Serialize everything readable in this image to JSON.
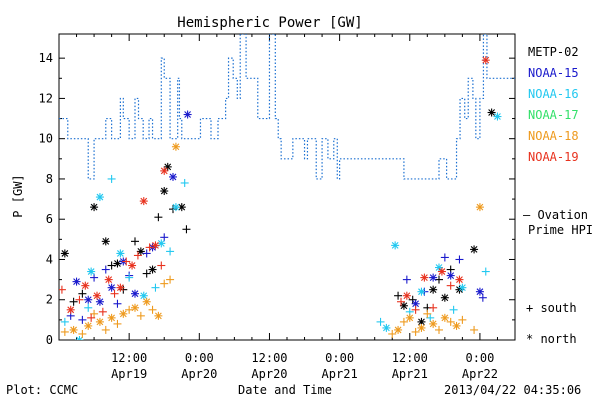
{
  "chart_data": {
    "type": "scatter",
    "title": "Hemispheric Power [GW]",
    "xlabel": "Date and Time",
    "ylabel": "P [GW]",
    "ylim": [
      0,
      15.2
    ],
    "xlim": [
      0,
      78
    ],
    "yticks": [
      0,
      2,
      4,
      6,
      8,
      10,
      12,
      14
    ],
    "xticks": [
      {
        "x": 12,
        "time": "12:00",
        "date": "Apr19"
      },
      {
        "x": 24,
        "time": "0:00",
        "date": "Apr20"
      },
      {
        "x": 36,
        "time": "12:00",
        "date": "Apr20"
      },
      {
        "x": 48,
        "time": "0:00",
        "date": "Apr21"
      },
      {
        "x": 60,
        "time": "12:00",
        "date": "Apr21"
      },
      {
        "x": 72,
        "time": "0:00",
        "date": "Apr22"
      }
    ],
    "x_units_note": "hours since Apr19 00:00",
    "legend_position": "right",
    "grid": false,
    "marker_legend": {
      "south": "+ south",
      "north": "* north"
    },
    "series": [
      {
        "name": "METP-02",
        "color": "#000000"
      },
      {
        "name": "NOAA-15",
        "color": "#1a1acc"
      },
      {
        "name": "NOAA-16",
        "color": "#22c8f0"
      },
      {
        "name": "NOAA-17",
        "color": "#33e06a"
      },
      {
        "name": "NOAA-18",
        "color": "#ee9a1e"
      },
      {
        "name": "NOAA-19",
        "color": "#e8321e"
      }
    ],
    "ovation": {
      "name": "— Ovation Prime HPI",
      "label_line1": "— Ovation",
      "label_line2": "Prime HPI",
      "color": "#1a6fd1",
      "steps": [
        [
          0,
          11
        ],
        [
          1.5,
          10
        ],
        [
          5,
          8
        ],
        [
          6,
          10
        ],
        [
          8,
          11
        ],
        [
          9,
          10
        ],
        [
          10.5,
          12
        ],
        [
          11,
          11
        ],
        [
          12,
          10
        ],
        [
          13,
          12
        ],
        [
          13.6,
          11
        ],
        [
          14.4,
          10
        ],
        [
          15.4,
          11
        ],
        [
          16,
          10
        ],
        [
          17.5,
          14
        ],
        [
          18,
          13
        ],
        [
          19,
          10
        ],
        [
          20.3,
          13
        ],
        [
          20.6,
          11
        ],
        [
          21,
          10
        ],
        [
          23,
          10
        ],
        [
          24.2,
          11
        ],
        [
          26,
          10
        ],
        [
          27.2,
          11
        ],
        [
          28,
          11
        ],
        [
          28.5,
          12
        ],
        [
          29,
          14
        ],
        [
          29.8,
          13
        ],
        [
          30.5,
          12
        ],
        [
          31,
          15.2
        ],
        [
          32,
          13
        ],
        [
          34,
          11
        ],
        [
          35,
          11
        ],
        [
          36,
          15.2
        ],
        [
          37,
          11
        ],
        [
          37.5,
          10
        ],
        [
          38,
          9
        ],
        [
          40,
          10
        ],
        [
          42,
          9
        ],
        [
          42.5,
          10
        ],
        [
          44,
          8
        ],
        [
          45,
          10
        ],
        [
          46,
          9
        ],
        [
          47,
          10
        ],
        [
          47.6,
          8
        ],
        [
          48,
          9
        ],
        [
          52,
          9
        ],
        [
          57,
          9
        ],
        [
          59,
          8
        ],
        [
          65,
          9
        ],
        [
          66.3,
          8
        ],
        [
          68,
          10
        ],
        [
          68.6,
          12
        ],
        [
          69.4,
          11
        ],
        [
          70,
          13
        ],
        [
          70.8,
          12
        ],
        [
          71.3,
          10
        ],
        [
          72,
          12
        ],
        [
          72.6,
          15.2
        ],
        [
          73.2,
          13
        ]
      ]
    },
    "points": [
      {
        "s": "METP-02",
        "m": "n",
        "x": 1.0,
        "y": 4.3
      },
      {
        "s": "METP-02",
        "m": "s",
        "x": 2.5,
        "y": 1.9
      },
      {
        "s": "METP-02",
        "m": "s",
        "x": 4,
        "y": 2.3
      },
      {
        "s": "METP-02",
        "m": "n",
        "x": 6,
        "y": 6.6
      },
      {
        "s": "METP-02",
        "m": "n",
        "x": 8,
        "y": 4.9
      },
      {
        "s": "METP-02",
        "m": "s",
        "x": 9,
        "y": 3.7
      },
      {
        "s": "METP-02",
        "m": "n",
        "x": 10,
        "y": 3.8
      },
      {
        "s": "METP-02",
        "m": "s",
        "x": 11,
        "y": 2.5
      },
      {
        "s": "METP-02",
        "m": "s",
        "x": 13,
        "y": 4.9
      },
      {
        "s": "METP-02",
        "m": "n",
        "x": 14,
        "y": 4.4
      },
      {
        "s": "METP-02",
        "m": "s",
        "x": 15,
        "y": 3.3
      },
      {
        "s": "METP-02",
        "m": "n",
        "x": 16,
        "y": 3.5
      },
      {
        "s": "METP-02",
        "m": "s",
        "x": 17,
        "y": 6.1
      },
      {
        "s": "METP-02",
        "m": "n",
        "x": 18,
        "y": 7.4
      },
      {
        "s": "METP-02",
        "m": "n",
        "x": 18.6,
        "y": 8.6
      },
      {
        "s": "METP-02",
        "m": "s",
        "x": 19.5,
        "y": 6.5
      },
      {
        "s": "METP-02",
        "m": "n",
        "x": 21,
        "y": 6.6
      },
      {
        "s": "METP-02",
        "m": "s",
        "x": 21.8,
        "y": 5.5
      },
      {
        "s": "METP-02",
        "m": "s",
        "x": 58,
        "y": 2.2
      },
      {
        "s": "METP-02",
        "m": "n",
        "x": 59,
        "y": 1.7
      },
      {
        "s": "METP-02",
        "m": "s",
        "x": 60.5,
        "y": 2.0
      },
      {
        "s": "METP-02",
        "m": "n",
        "x": 62,
        "y": 0.9
      },
      {
        "s": "METP-02",
        "m": "s",
        "x": 63,
        "y": 1.6
      },
      {
        "s": "METP-02",
        "m": "n",
        "x": 64,
        "y": 2.5
      },
      {
        "s": "METP-02",
        "m": "s",
        "x": 65,
        "y": 3.0
      },
      {
        "s": "METP-02",
        "m": "n",
        "x": 66,
        "y": 2.1
      },
      {
        "s": "METP-02",
        "m": "s",
        "x": 67,
        "y": 3.5
      },
      {
        "s": "METP-02",
        "m": "n",
        "x": 68.5,
        "y": 2.5
      },
      {
        "s": "METP-02",
        "m": "n",
        "x": 71,
        "y": 4.5
      },
      {
        "s": "METP-02",
        "m": "n",
        "x": 74,
        "y": 11.3
      },
      {
        "s": "NOAA-15",
        "m": "s",
        "x": 2,
        "y": 1.2
      },
      {
        "s": "NOAA-15",
        "m": "n",
        "x": 3,
        "y": 2.9
      },
      {
        "s": "NOAA-15",
        "m": "s",
        "x": 4,
        "y": 1.0
      },
      {
        "s": "NOAA-15",
        "m": "n",
        "x": 5,
        "y": 2.0
      },
      {
        "s": "NOAA-15",
        "m": "s",
        "x": 6,
        "y": 3.1
      },
      {
        "s": "NOAA-15",
        "m": "n",
        "x": 7,
        "y": 1.9
      },
      {
        "s": "NOAA-15",
        "m": "s",
        "x": 8,
        "y": 3.5
      },
      {
        "s": "NOAA-15",
        "m": "n",
        "x": 9,
        "y": 2.6
      },
      {
        "s": "NOAA-15",
        "m": "s",
        "x": 10,
        "y": 1.8
      },
      {
        "s": "NOAA-15",
        "m": "n",
        "x": 11,
        "y": 3.9
      },
      {
        "s": "NOAA-15",
        "m": "s",
        "x": 12,
        "y": 3.2
      },
      {
        "s": "NOAA-15",
        "m": "n",
        "x": 13,
        "y": 2.3
      },
      {
        "s": "NOAA-15",
        "m": "s",
        "x": 15,
        "y": 4.3
      },
      {
        "s": "NOAA-15",
        "m": "n",
        "x": 16,
        "y": 4.6
      },
      {
        "s": "NOAA-15",
        "m": "s",
        "x": 18,
        "y": 5.1
      },
      {
        "s": "NOAA-15",
        "m": "n",
        "x": 19.5,
        "y": 8.1
      },
      {
        "s": "NOAA-15",
        "m": "n",
        "x": 22,
        "y": 11.2
      },
      {
        "s": "NOAA-15",
        "m": "s",
        "x": 59.5,
        "y": 3.0
      },
      {
        "s": "NOAA-15",
        "m": "n",
        "x": 61,
        "y": 1.8
      },
      {
        "s": "NOAA-15",
        "m": "s",
        "x": 62.5,
        "y": 2.4
      },
      {
        "s": "NOAA-15",
        "m": "n",
        "x": 64,
        "y": 3.1
      },
      {
        "s": "NOAA-15",
        "m": "s",
        "x": 66,
        "y": 4.1
      },
      {
        "s": "NOAA-15",
        "m": "n",
        "x": 67,
        "y": 3.2
      },
      {
        "s": "NOAA-15",
        "m": "s",
        "x": 68.5,
        "y": 4.0
      },
      {
        "s": "NOAA-15",
        "m": "n",
        "x": 72,
        "y": 2.4
      },
      {
        "s": "NOAA-15",
        "m": "s",
        "x": 72.5,
        "y": 2.1
      },
      {
        "s": "NOAA-16",
        "m": "s",
        "x": 1,
        "y": 0.9
      },
      {
        "s": "NOAA-16",
        "m": "n",
        "x": 3.5,
        "y": 0.0
      },
      {
        "s": "NOAA-16",
        "m": "s",
        "x": 5,
        "y": 1.6
      },
      {
        "s": "NOAA-16",
        "m": "n",
        "x": 5.5,
        "y": 3.4
      },
      {
        "s": "NOAA-16",
        "m": "n",
        "x": 7,
        "y": 7.1
      },
      {
        "s": "NOAA-16",
        "m": "s",
        "x": 9,
        "y": 8.0
      },
      {
        "s": "NOAA-16",
        "m": "n",
        "x": 10.5,
        "y": 4.3
      },
      {
        "s": "NOAA-16",
        "m": "s",
        "x": 12,
        "y": 3.1
      },
      {
        "s": "NOAA-16",
        "m": "n",
        "x": 14.5,
        "y": 2.2
      },
      {
        "s": "NOAA-16",
        "m": "s",
        "x": 16.5,
        "y": 2.6
      },
      {
        "s": "NOAA-16",
        "m": "n",
        "x": 17.5,
        "y": 4.8
      },
      {
        "s": "NOAA-16",
        "m": "s",
        "x": 19,
        "y": 4.4
      },
      {
        "s": "NOAA-16",
        "m": "n",
        "x": 20,
        "y": 6.6
      },
      {
        "s": "NOAA-16",
        "m": "s",
        "x": 21.5,
        "y": 7.8
      },
      {
        "s": "NOAA-16",
        "m": "s",
        "x": 55,
        "y": 0.9
      },
      {
        "s": "NOAA-16",
        "m": "n",
        "x": 56,
        "y": 0.6
      },
      {
        "s": "NOAA-16",
        "m": "n",
        "x": 57.5,
        "y": 4.7
      },
      {
        "s": "NOAA-16",
        "m": "s",
        "x": 60,
        "y": 1.4
      },
      {
        "s": "NOAA-16",
        "m": "n",
        "x": 62,
        "y": 2.4
      },
      {
        "s": "NOAA-16",
        "m": "s",
        "x": 63.5,
        "y": 1.1
      },
      {
        "s": "NOAA-16",
        "m": "n",
        "x": 65,
        "y": 3.6
      },
      {
        "s": "NOAA-16",
        "m": "s",
        "x": 67.5,
        "y": 1.5
      },
      {
        "s": "NOAA-16",
        "m": "n",
        "x": 69,
        "y": 2.6
      },
      {
        "s": "NOAA-16",
        "m": "s",
        "x": 73,
        "y": 3.4
      },
      {
        "s": "NOAA-16",
        "m": "n",
        "x": 75,
        "y": 11.1
      },
      {
        "s": "NOAA-18",
        "m": "s",
        "x": 1,
        "y": 0.4
      },
      {
        "s": "NOAA-18",
        "m": "n",
        "x": 2.5,
        "y": 0.5
      },
      {
        "s": "NOAA-18",
        "m": "s",
        "x": 4,
        "y": 0.3
      },
      {
        "s": "NOAA-18",
        "m": "n",
        "x": 5,
        "y": 0.7
      },
      {
        "s": "NOAA-18",
        "m": "s",
        "x": 6,
        "y": 1.3
      },
      {
        "s": "NOAA-18",
        "m": "n",
        "x": 7,
        "y": 0.9
      },
      {
        "s": "NOAA-18",
        "m": "s",
        "x": 8,
        "y": 0.5
      },
      {
        "s": "NOAA-18",
        "m": "n",
        "x": 9,
        "y": 1.1
      },
      {
        "s": "NOAA-18",
        "m": "s",
        "x": 10,
        "y": 0.8
      },
      {
        "s": "NOAA-18",
        "m": "n",
        "x": 11,
        "y": 1.3
      },
      {
        "s": "NOAA-18",
        "m": "s",
        "x": 12,
        "y": 1.5
      },
      {
        "s": "NOAA-18",
        "m": "n",
        "x": 13,
        "y": 1.6
      },
      {
        "s": "NOAA-18",
        "m": "s",
        "x": 14,
        "y": 1.2
      },
      {
        "s": "NOAA-18",
        "m": "n",
        "x": 15,
        "y": 1.9
      },
      {
        "s": "NOAA-18",
        "m": "s",
        "x": 16,
        "y": 1.5
      },
      {
        "s": "NOAA-18",
        "m": "n",
        "x": 17,
        "y": 1.2
      },
      {
        "s": "NOAA-18",
        "m": "s",
        "x": 18,
        "y": 2.8
      },
      {
        "s": "NOAA-18",
        "m": "s",
        "x": 19,
        "y": 3.0
      },
      {
        "s": "NOAA-18",
        "m": "n",
        "x": 20,
        "y": 9.6
      },
      {
        "s": "NOAA-18",
        "m": "s",
        "x": 57,
        "y": 0.3
      },
      {
        "s": "NOAA-18",
        "m": "n",
        "x": 58,
        "y": 0.5
      },
      {
        "s": "NOAA-18",
        "m": "s",
        "x": 59,
        "y": 0.9
      },
      {
        "s": "NOAA-18",
        "m": "n",
        "x": 60,
        "y": 1.1
      },
      {
        "s": "NOAA-18",
        "m": "s",
        "x": 61,
        "y": 0.4
      },
      {
        "s": "NOAA-18",
        "m": "n",
        "x": 62,
        "y": 0.6
      },
      {
        "s": "NOAA-18",
        "m": "s",
        "x": 63,
        "y": 1.3
      },
      {
        "s": "NOAA-18",
        "m": "n",
        "x": 64,
        "y": 0.8
      },
      {
        "s": "NOAA-18",
        "m": "s",
        "x": 65,
        "y": 0.5
      },
      {
        "s": "NOAA-18",
        "m": "n",
        "x": 66,
        "y": 1.1
      },
      {
        "s": "NOAA-18",
        "m": "s",
        "x": 67,
        "y": 0.9
      },
      {
        "s": "NOAA-18",
        "m": "n",
        "x": 68,
        "y": 0.7
      },
      {
        "s": "NOAA-18",
        "m": "s",
        "x": 69,
        "y": 1.0
      },
      {
        "s": "NOAA-18",
        "m": "s",
        "x": 71,
        "y": 0.5
      },
      {
        "s": "NOAA-18",
        "m": "n",
        "x": 72,
        "y": 6.6
      },
      {
        "s": "NOAA-19",
        "m": "s",
        "x": 0.5,
        "y": 2.5
      },
      {
        "s": "NOAA-19",
        "m": "n",
        "x": 2,
        "y": 1.5
      },
      {
        "s": "NOAA-19",
        "m": "s",
        "x": 3.5,
        "y": 2.0
      },
      {
        "s": "NOAA-19",
        "m": "n",
        "x": 4.5,
        "y": 2.7
      },
      {
        "s": "NOAA-19",
        "m": "s",
        "x": 5.5,
        "y": 1.1
      },
      {
        "s": "NOAA-19",
        "m": "n",
        "x": 6.5,
        "y": 2.2
      },
      {
        "s": "NOAA-19",
        "m": "s",
        "x": 7.5,
        "y": 1.4
      },
      {
        "s": "NOAA-19",
        "m": "n",
        "x": 8.5,
        "y": 3.0
      },
      {
        "s": "NOAA-19",
        "m": "s",
        "x": 9.5,
        "y": 2.3
      },
      {
        "s": "NOAA-19",
        "m": "n",
        "x": 10.5,
        "y": 2.6
      },
      {
        "s": "NOAA-19",
        "m": "s",
        "x": 11.5,
        "y": 3.9
      },
      {
        "s": "NOAA-19",
        "m": "n",
        "x": 12.5,
        "y": 3.7
      },
      {
        "s": "NOAA-19",
        "m": "s",
        "x": 13.5,
        "y": 4.2
      },
      {
        "s": "NOAA-19",
        "m": "n",
        "x": 14.5,
        "y": 6.9
      },
      {
        "s": "NOAA-19",
        "m": "s",
        "x": 15.5,
        "y": 4.6
      },
      {
        "s": "NOAA-19",
        "m": "n",
        "x": 16.5,
        "y": 4.7
      },
      {
        "s": "NOAA-19",
        "m": "s",
        "x": 17.5,
        "y": 3.7
      },
      {
        "s": "NOAA-19",
        "m": "n",
        "x": 18,
        "y": 8.4
      },
      {
        "s": "NOAA-19",
        "m": "s",
        "x": 58.5,
        "y": 1.9
      },
      {
        "s": "NOAA-19",
        "m": "n",
        "x": 59.5,
        "y": 2.2
      },
      {
        "s": "NOAA-19",
        "m": "s",
        "x": 61,
        "y": 1.5
      },
      {
        "s": "NOAA-19",
        "m": "n",
        "x": 62.5,
        "y": 3.1
      },
      {
        "s": "NOAA-19",
        "m": "s",
        "x": 64,
        "y": 1.6
      },
      {
        "s": "NOAA-19",
        "m": "n",
        "x": 65.5,
        "y": 3.4
      },
      {
        "s": "NOAA-19",
        "m": "s",
        "x": 67,
        "y": 2.7
      },
      {
        "s": "NOAA-19",
        "m": "n",
        "x": 68.5,
        "y": 3.0
      },
      {
        "s": "NOAA-19",
        "m": "n",
        "x": 73,
        "y": 13.9
      }
    ]
  },
  "footer": {
    "plot_label": "Plot: CCMC",
    "timestamp": "2013/04/22 04:35:06"
  }
}
